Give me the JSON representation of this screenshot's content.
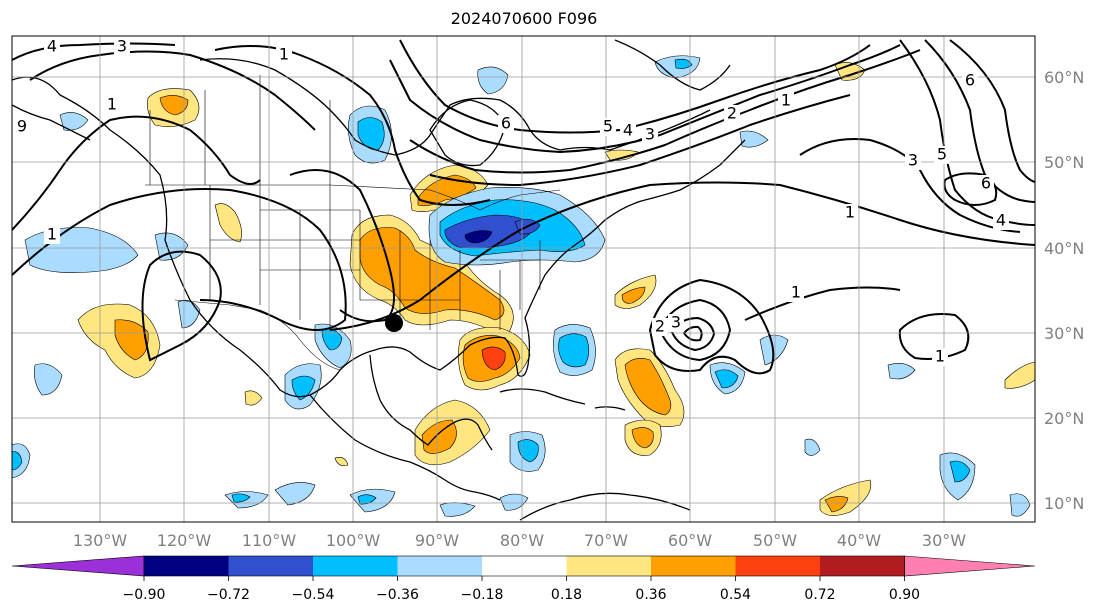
{
  "title": "2024070600 F096",
  "lon_labels": [
    "130°W",
    "120°W",
    "110°W",
    "100°W",
    "90°W",
    "80°W",
    "70°W",
    "60°W",
    "50°W",
    "40°W",
    "30°W"
  ],
  "lat_labels": [
    "60°N",
    "50°N",
    "40°N",
    "30°N",
    "20°N",
    "10°N"
  ],
  "colorbar": {
    "tick_labels": [
      "−0.90",
      "−0.72",
      "−0.54",
      "−0.36",
      "−0.18",
      "0.18",
      "0.36",
      "0.54",
      "0.72",
      "0.90"
    ],
    "colors": [
      "#9b30d9",
      "#000080",
      "#3050d0",
      "#00bfff",
      "#aadcff",
      "#ffffff",
      "#ffe680",
      "#ffa000",
      "#ff4010",
      "#b01c20",
      "#ff80b0"
    ]
  },
  "contour_labels": [
    "4",
    "3",
    "1",
    "1",
    "9",
    "6",
    "5",
    "4",
    "3",
    "2",
    "1",
    "6",
    "3",
    "5",
    "6",
    "4",
    "1",
    "1",
    "2",
    "3",
    "1",
    "1"
  ],
  "marker": "storm-center-dot"
}
